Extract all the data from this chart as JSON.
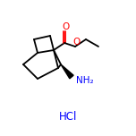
{
  "bg_color": "#ffffff",
  "bond_color": "#000000",
  "O_color": "#ff0000",
  "N_color": "#0000ff",
  "line_width": 1.3,
  "figsize": [
    1.52,
    1.52
  ],
  "dpi": 100,
  "HCl_text": "HCl",
  "NH2_text": "NH₂",
  "O_text": "O",
  "HCl_color": "#0000ff"
}
